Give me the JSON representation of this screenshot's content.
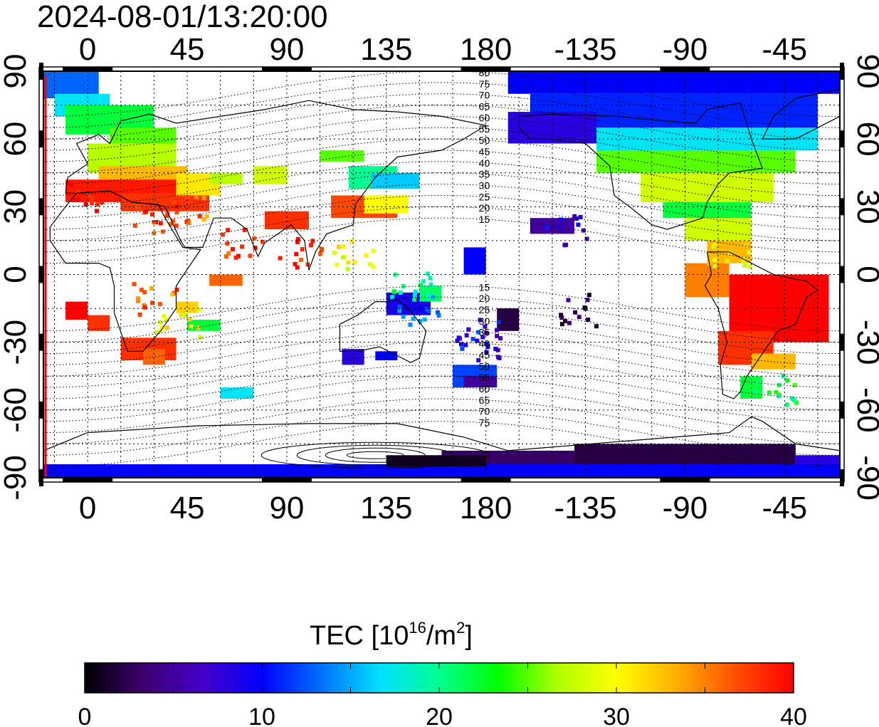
{
  "title": "2024-08-01/13:20:00",
  "map": {
    "lon_labels": [
      "0",
      "45",
      "90",
      "135",
      "180",
      "-135",
      "-90",
      "-45"
    ],
    "lon_values": [
      0,
      45,
      90,
      135,
      180,
      225,
      270,
      315
    ],
    "lon_range": [
      -20,
      340
    ],
    "lat_labels": [
      "90",
      "60",
      "30",
      "0",
      "-30",
      "-60",
      "-90"
    ],
    "lat_values": [
      90,
      60,
      30,
      0,
      -30,
      -60,
      -90
    ],
    "lat_range": [
      -90,
      90
    ],
    "grid": true,
    "terminator_lon": -20,
    "colors": {
      "terminator": "#ff0000",
      "frame": "#000000"
    }
  },
  "contours": {
    "north_labels": [
      "80",
      "75",
      "70",
      "65",
      "60",
      "55",
      "50",
      "45",
      "40",
      "35",
      "30",
      "25",
      "20",
      "15"
    ],
    "south_labels": [
      "15",
      "20",
      "25",
      "30",
      "35",
      "40",
      "45",
      "50",
      "55",
      "60",
      "65",
      "70",
      "75"
    ]
  },
  "colorbar": {
    "title_prefix": "TEC  [10",
    "title_exp": "16",
    "title_mid": "/m",
    "title_exp2": "2",
    "title_suffix": "]",
    "tick_labels": [
      "0",
      "10",
      "20",
      "30",
      "40"
    ],
    "min": 0,
    "max": 40,
    "colors": [
      "#000000",
      "#3d0070",
      "#4400c8",
      "#0000ff",
      "#0070ff",
      "#00e0ff",
      "#00ff90",
      "#00ff00",
      "#b0ff00",
      "#ffff00",
      "#ffb000",
      "#ff5000",
      "#ff0000"
    ]
  }
}
